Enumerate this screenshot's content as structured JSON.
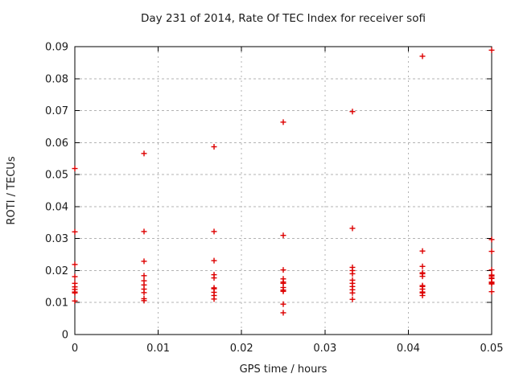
{
  "chart_data": {
    "type": "scatter",
    "title": "Day 231 of 2014, Rate Of TEC Index for receiver sofi",
    "xlabel": "GPS time / hours",
    "ylabel": "ROTI / TECUs",
    "xlim": [
      0,
      0.05
    ],
    "ylim": [
      0,
      0.09
    ],
    "xticks": [
      0,
      0.01,
      0.02,
      0.03,
      0.04,
      0.05
    ],
    "xtick_labels": [
      "0",
      "0.01",
      "0.02",
      "0.03",
      "0.04",
      "0.05"
    ],
    "yticks": [
      0,
      0.01,
      0.02,
      0.03,
      0.04,
      0.05,
      0.06,
      0.07,
      0.08,
      0.09
    ],
    "ytick_labels": [
      "0",
      "0.01",
      "0.02",
      "0.03",
      "0.04",
      "0.05",
      "0.06",
      "0.07",
      "0.08",
      "0.09"
    ],
    "grid": true,
    "legend": false,
    "background_color": "#ffffff",
    "grid_color": "#b3b3b3",
    "axis_color": "#000000",
    "series": [
      {
        "name": "ROTI",
        "marker": "plus",
        "color": "#dd0000",
        "points": [
          [
            0,
            0.0519
          ],
          [
            0,
            0.0321
          ],
          [
            0,
            0.0219
          ],
          [
            0,
            0.0181
          ],
          [
            0,
            0.016
          ],
          [
            0,
            0.0149
          ],
          [
            0,
            0.0141
          ],
          [
            0,
            0.0133
          ],
          [
            0,
            0.013
          ],
          [
            0,
            0.0105
          ],
          [
            0.0083,
            0.0566
          ],
          [
            0.0083,
            0.0322
          ],
          [
            0.0083,
            0.0229
          ],
          [
            0.0083,
            0.0184
          ],
          [
            0.0083,
            0.0168
          ],
          [
            0.0083,
            0.0155
          ],
          [
            0.0083,
            0.0142
          ],
          [
            0.0083,
            0.0131
          ],
          [
            0.0083,
            0.0112
          ],
          [
            0.0083,
            0.0106
          ],
          [
            0.0167,
            0.0587
          ],
          [
            0.0167,
            0.0322
          ],
          [
            0.0167,
            0.0231
          ],
          [
            0.0167,
            0.0187
          ],
          [
            0.0167,
            0.0177
          ],
          [
            0.0167,
            0.0146
          ],
          [
            0.0167,
            0.0143
          ],
          [
            0.0167,
            0.0132
          ],
          [
            0.0167,
            0.0122
          ],
          [
            0.0167,
            0.0111
          ],
          [
            0.025,
            0.0664
          ],
          [
            0.025,
            0.031
          ],
          [
            0.025,
            0.0202
          ],
          [
            0.025,
            0.0174
          ],
          [
            0.025,
            0.0164
          ],
          [
            0.025,
            0.016
          ],
          [
            0.025,
            0.0147
          ],
          [
            0.025,
            0.0139
          ],
          [
            0.025,
            0.0135
          ],
          [
            0.025,
            0.0095
          ],
          [
            0.025,
            0.0068
          ],
          [
            0.0333,
            0.0697
          ],
          [
            0.0333,
            0.0332
          ],
          [
            0.0333,
            0.021
          ],
          [
            0.0333,
            0.02
          ],
          [
            0.0333,
            0.019
          ],
          [
            0.0333,
            0.017
          ],
          [
            0.0333,
            0.016
          ],
          [
            0.0333,
            0.015
          ],
          [
            0.0333,
            0.014
          ],
          [
            0.0333,
            0.013
          ],
          [
            0.0333,
            0.011
          ],
          [
            0.0417,
            0.087
          ],
          [
            0.0417,
            0.0261
          ],
          [
            0.0417,
            0.0213
          ],
          [
            0.0417,
            0.0193
          ],
          [
            0.0417,
            0.019
          ],
          [
            0.0417,
            0.0182
          ],
          [
            0.0417,
            0.0153
          ],
          [
            0.0417,
            0.015
          ],
          [
            0.0417,
            0.0142
          ],
          [
            0.0417,
            0.0133
          ],
          [
            0.0417,
            0.013
          ],
          [
            0.0417,
            0.0122
          ],
          [
            0.05,
            0.0889
          ],
          [
            0.05,
            0.0297
          ],
          [
            0.05,
            0.026
          ],
          [
            0.05,
            0.0202
          ],
          [
            0.05,
            0.0186
          ],
          [
            0.05,
            0.0183
          ],
          [
            0.05,
            0.0177
          ],
          [
            0.05,
            0.0175
          ],
          [
            0.05,
            0.0164
          ],
          [
            0.05,
            0.0161
          ],
          [
            0.05,
            0.0158
          ],
          [
            0.05,
            0.0134
          ]
        ]
      }
    ]
  }
}
